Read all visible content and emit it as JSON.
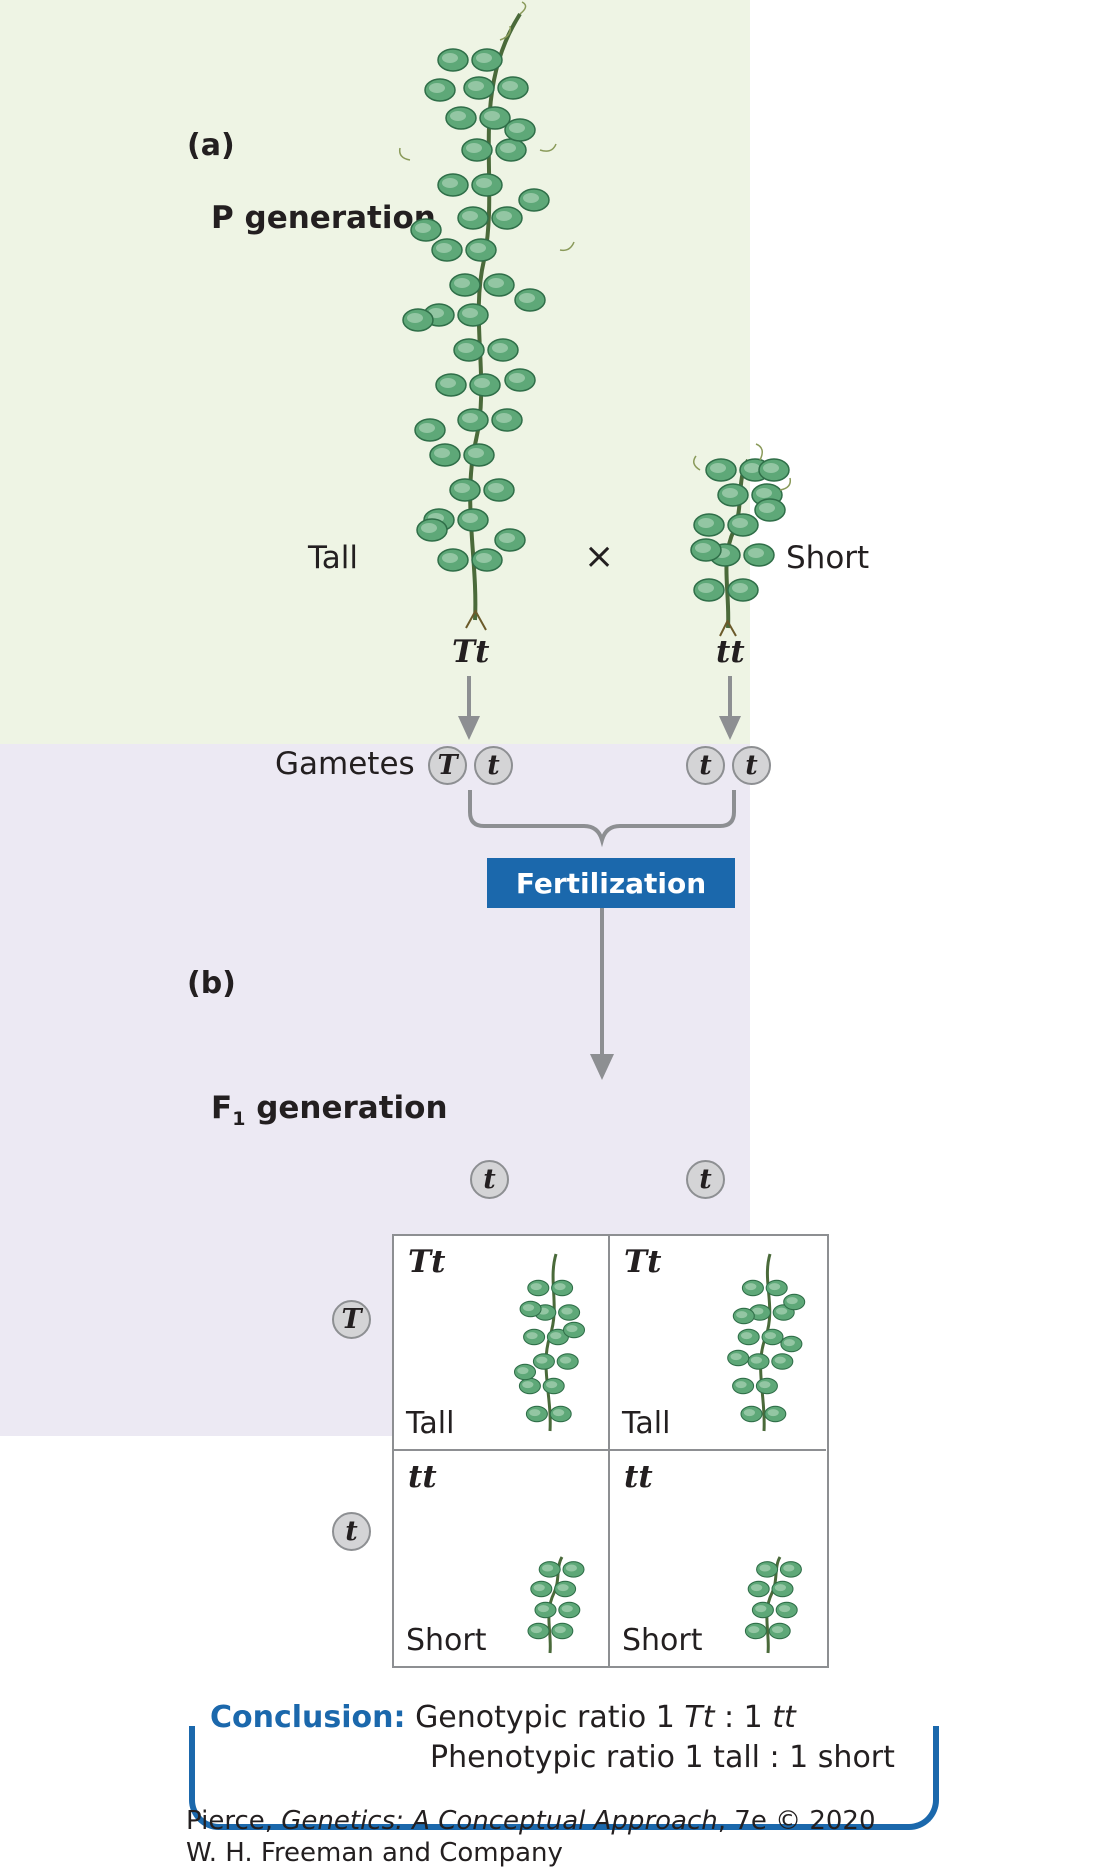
{
  "panel_a": {
    "label": "(a)",
    "title": "P generation",
    "tall_label": "Tall",
    "cross_symbol": "×",
    "short_label": "Short",
    "tall_genotype": "Tt",
    "short_genotype": "tt",
    "gametes_label": "Gametes",
    "gametes_tall": [
      "T",
      "t"
    ],
    "gametes_short": [
      "t",
      "t"
    ],
    "fertilization_label": "Fertilization"
  },
  "panel_b": {
    "label": "(b)",
    "title": "F",
    "title_sub": "1",
    "title_rest": " generation",
    "col_alleles": [
      "t",
      "t"
    ],
    "row_alleles": [
      "T",
      "t"
    ],
    "cells": [
      {
        "genotype": "Tt",
        "phenotype": "Tall"
      },
      {
        "genotype": "Tt",
        "phenotype": "Tall"
      },
      {
        "genotype": "tt",
        "phenotype": "Short"
      },
      {
        "genotype": "tt",
        "phenotype": "Short"
      }
    ]
  },
  "conclusion": {
    "head": "Conclusion:",
    "line1_text": "Genotypic ratio 1 ",
    "line1_g1": "Tt",
    "line1_mid": " : 1 ",
    "line1_g2": "tt",
    "line2_text": "Phenotypic ratio 1 tall : 1 short"
  },
  "credit": {
    "line1_a": "Pierce, ",
    "line1_b": "Genetics: A Conceptual Approach",
    "line1_c": ", 7e © 2020",
    "line2": "W. H. Freeman and Company"
  },
  "colors": {
    "panel_a_bg": "#eef4e4",
    "panel_b_bg": "#ece9f3",
    "accent_blue": "#1b68ac",
    "plant_green": "#4f9a6c",
    "allele_fill": "#d4d4d6"
  }
}
